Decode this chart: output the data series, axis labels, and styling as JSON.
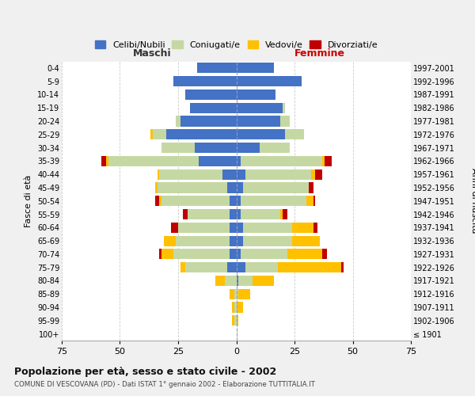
{
  "age_groups": [
    "100+",
    "95-99",
    "90-94",
    "85-89",
    "80-84",
    "75-79",
    "70-74",
    "65-69",
    "60-64",
    "55-59",
    "50-54",
    "45-49",
    "40-44",
    "35-39",
    "30-34",
    "25-29",
    "20-24",
    "15-19",
    "10-14",
    "5-9",
    "0-4"
  ],
  "birth_years": [
    "≤ 1901",
    "1902-1906",
    "1907-1911",
    "1912-1916",
    "1917-1921",
    "1922-1926",
    "1927-1931",
    "1932-1936",
    "1937-1941",
    "1942-1946",
    "1947-1951",
    "1952-1956",
    "1957-1961",
    "1962-1966",
    "1967-1971",
    "1972-1976",
    "1977-1981",
    "1982-1986",
    "1987-1991",
    "1992-1996",
    "1997-2001"
  ],
  "maschi": {
    "celibi": [
      0,
      0,
      0,
      0,
      0,
      4,
      3,
      3,
      3,
      3,
      3,
      4,
      6,
      16,
      18,
      30,
      24,
      20,
      22,
      27,
      17
    ],
    "coniugati": [
      0,
      1,
      1,
      1,
      5,
      18,
      24,
      23,
      22,
      18,
      29,
      30,
      27,
      39,
      14,
      6,
      2,
      0,
      0,
      0,
      0
    ],
    "vedovi": [
      0,
      1,
      1,
      2,
      4,
      2,
      5,
      5,
      0,
      0,
      1,
      1,
      1,
      1,
      0,
      1,
      0,
      0,
      0,
      0,
      0
    ],
    "divorziati": [
      0,
      0,
      0,
      0,
      0,
      0,
      1,
      0,
      3,
      2,
      2,
      0,
      0,
      2,
      0,
      0,
      0,
      0,
      0,
      0,
      0
    ]
  },
  "femmine": {
    "nubili": [
      0,
      0,
      0,
      0,
      1,
      4,
      2,
      3,
      3,
      2,
      2,
      3,
      4,
      2,
      10,
      21,
      19,
      20,
      17,
      28,
      16
    ],
    "coniugate": [
      0,
      0,
      0,
      1,
      6,
      14,
      20,
      21,
      21,
      17,
      28,
      28,
      28,
      35,
      13,
      8,
      4,
      1,
      0,
      0,
      0
    ],
    "vedove": [
      0,
      1,
      3,
      5,
      9,
      27,
      15,
      12,
      9,
      1,
      3,
      0,
      2,
      1,
      0,
      0,
      0,
      0,
      0,
      0,
      0
    ],
    "divorziate": [
      0,
      0,
      0,
      0,
      0,
      1,
      2,
      0,
      2,
      2,
      1,
      2,
      3,
      3,
      0,
      0,
      0,
      0,
      0,
      0,
      0
    ]
  },
  "colors": {
    "celibi": "#4472c4",
    "coniugati": "#c5d8a4",
    "vedovi": "#ffc000",
    "divorziati": "#c00000"
  },
  "xlim": 75,
  "title": "Popolazione per età, sesso e stato civile - 2002",
  "subtitle": "COMUNE DI VESCOVANA (PD) - Dati ISTAT 1° gennaio 2002 - Elaborazione TUTTITALIA.IT",
  "ylabel_left": "Fasce di età",
  "ylabel_right": "Anni di nascita",
  "xlabel_left": "Maschi",
  "xlabel_right": "Femmine",
  "legend_labels": [
    "Celibi/Nubili",
    "Coniugati/e",
    "Vedovi/e",
    "Divorziati/e"
  ],
  "bg_color": "#f0f0f0",
  "plot_bg": "#ffffff"
}
